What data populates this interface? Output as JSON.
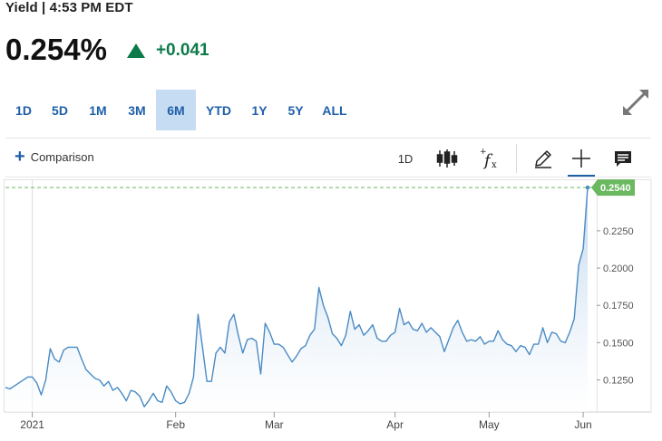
{
  "header": {
    "label": "Yield | 4:53 PM EDT"
  },
  "quote": {
    "price": "0.254%",
    "change": "+0.041",
    "direction": "up",
    "up_color": "#0d7a4a"
  },
  "ranges": {
    "items": [
      "1D",
      "5D",
      "1M",
      "3M",
      "6M",
      "YTD",
      "1Y",
      "5Y",
      "ALL"
    ],
    "active": "6M"
  },
  "toolbar": {
    "comparison_label": "Comparison",
    "interval_label": "1D",
    "tools": [
      "candlestick-icon",
      "indicator-fx-icon",
      "pencil-icon",
      "crosshair-icon",
      "notes-icon"
    ]
  },
  "chart_data": {
    "type": "area",
    "title": "",
    "xlabel": "",
    "ylabel": "",
    "x_tick_labels": [
      "2021",
      "Feb",
      "Mar",
      "Apr",
      "May",
      "Jun"
    ],
    "y_tick_labels": [
      "0.1250",
      "0.1500",
      "0.1750",
      "0.2000",
      "0.2250"
    ],
    "y_ticks": [
      0.125,
      0.15,
      0.175,
      0.2,
      0.225
    ],
    "ylim": [
      0.1035,
      0.2565
    ],
    "last_value_label": "0.2540",
    "last_value": 0.254,
    "line_color": "#4a8bc4",
    "grid": "vertical lines at month starts",
    "series": [
      {
        "values": [
          0.12,
          0.119,
          0.121,
          0.123,
          0.125,
          0.127,
          0.127,
          0.123,
          0.115,
          0.125,
          0.146,
          0.139,
          0.137,
          0.145,
          0.147,
          0.147,
          0.147,
          0.139,
          0.132,
          0.129,
          0.126,
          0.125,
          0.121,
          0.124,
          0.118,
          0.12,
          0.116,
          0.111,
          0.118,
          0.117,
          0.114,
          0.107,
          0.111,
          0.116,
          0.111,
          0.11,
          0.121,
          0.117,
          0.111,
          0.109,
          0.11,
          0.116,
          0.127,
          0.169,
          0.147,
          0.124,
          0.124,
          0.143,
          0.147,
          0.143,
          0.164,
          0.169,
          0.155,
          0.143,
          0.152,
          0.153,
          0.151,
          0.129,
          0.163,
          0.157,
          0.149,
          0.149,
          0.147,
          0.142,
          0.137,
          0.141,
          0.146,
          0.148,
          0.155,
          0.159,
          0.187,
          0.175,
          0.167,
          0.156,
          0.153,
          0.148,
          0.155,
          0.171,
          0.159,
          0.162,
          0.155,
          0.158,
          0.162,
          0.153,
          0.151,
          0.151,
          0.155,
          0.157,
          0.173,
          0.162,
          0.164,
          0.159,
          0.158,
          0.163,
          0.157,
          0.16,
          0.157,
          0.154,
          0.144,
          0.152,
          0.16,
          0.165,
          0.157,
          0.151,
          0.152,
          0.151,
          0.154,
          0.149,
          0.151,
          0.151,
          0.158,
          0.152,
          0.149,
          0.148,
          0.144,
          0.148,
          0.147,
          0.142,
          0.149,
          0.149,
          0.16,
          0.15,
          0.157,
          0.156,
          0.151,
          0.15,
          0.157,
          0.166,
          0.202,
          0.213,
          0.254
        ]
      }
    ]
  }
}
